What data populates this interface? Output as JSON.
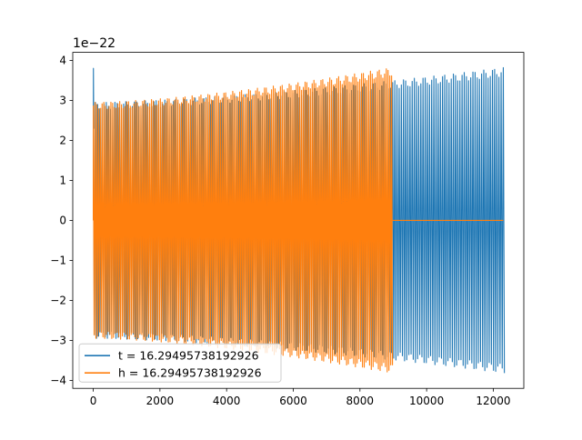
{
  "chart_data": {
    "type": "line",
    "title": "",
    "xlabel": "",
    "ylabel": "",
    "y_offset_label": "1e−22",
    "xlim": [
      -615,
      12915
    ],
    "ylim": [
      -4.2,
      4.2
    ],
    "x_ticks": [
      0,
      2000,
      4000,
      6000,
      8000,
      10000,
      12000
    ],
    "x_tick_labels": [
      "0",
      "2000",
      "4000",
      "6000",
      "8000",
      "10000",
      "12000"
    ],
    "y_ticks": [
      -4,
      -3,
      -2,
      -1,
      0,
      1,
      2,
      3,
      4
    ],
    "y_tick_labels": [
      "−4",
      "−3",
      "−2",
      "−1",
      "0",
      "1",
      "2",
      "3",
      "4"
    ],
    "grid": false,
    "legend_position": "lower-left",
    "series": [
      {
        "name": "t = 16.29495738192926",
        "color": "#1f77b4",
        "x_range": [
          0,
          12300
        ],
        "envelope_start": 2.95,
        "envelope_end": 3.82,
        "initial_spike": 3.8,
        "units": "1e-22"
      },
      {
        "name": "h = 16.29495738192926",
        "color": "#ff7f0e",
        "x_range": [
          0,
          8950
        ],
        "envelope_start": 2.95,
        "envelope_end": 3.82,
        "zero_after": [
          8950,
          12300
        ],
        "units": "1e-22"
      }
    ]
  }
}
